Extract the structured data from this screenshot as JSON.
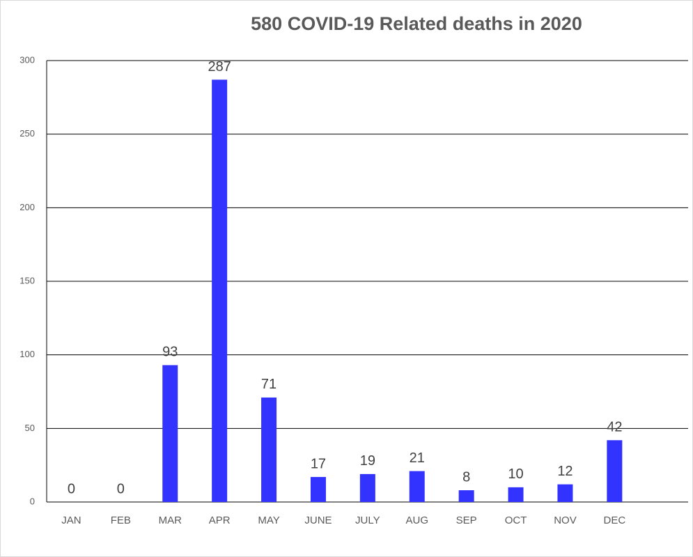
{
  "chart_data": {
    "type": "bar",
    "title": "580 COVID-19 Related deaths in 2020",
    "categories": [
      "JAN",
      "FEB",
      "MAR",
      "APR",
      "MAY",
      "JUNE",
      "JULY",
      "AUG",
      "SEP",
      "OCT",
      "NOV",
      "DEC"
    ],
    "values": [
      0,
      0,
      93,
      287,
      71,
      17,
      19,
      21,
      8,
      10,
      12,
      42
    ],
    "color": "#3333ff",
    "ylim": [
      0,
      300
    ],
    "yticks": [
      0,
      50,
      100,
      150,
      200,
      250,
      300
    ],
    "grid": true
  }
}
